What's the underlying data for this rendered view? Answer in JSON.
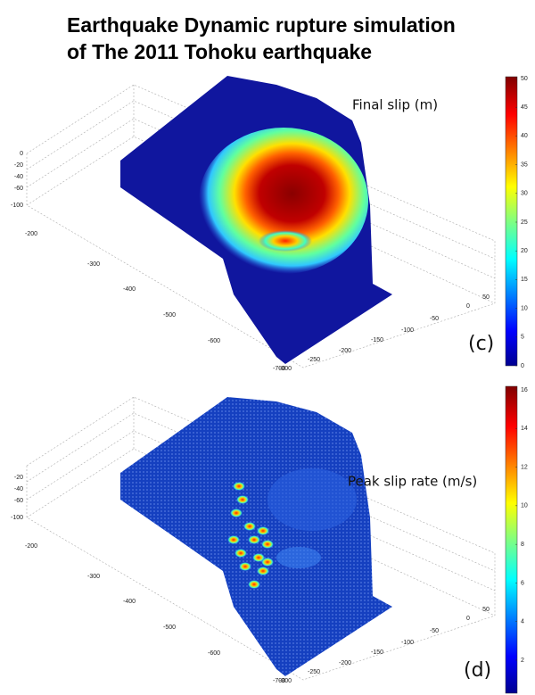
{
  "title": [
    "Earthquake Dynamic rupture simulation",
    "of The 2011 Tohoku earthquake"
  ],
  "panels": [
    {
      "caption": "Final slip (m)",
      "label": "(c)",
      "colorbar_ticks": [
        0,
        5,
        10,
        15,
        20,
        25,
        30,
        35,
        40,
        45,
        50
      ],
      "z_ticks": [
        0,
        -20,
        -40,
        -60,
        -100
      ],
      "left_ticks": [
        -200,
        -300,
        -400,
        -500,
        -600,
        -700
      ],
      "right_ticks": [
        50,
        0,
        -50,
        -100,
        -150,
        -200,
        -250,
        -300
      ]
    },
    {
      "caption": "Peak slip rate (m/s)",
      "label": "(d)",
      "colorbar_ticks": [
        2,
        4,
        6,
        8,
        10,
        12,
        14,
        16
      ],
      "z_ticks": [
        -20,
        -40,
        -60,
        -100
      ],
      "left_ticks": [
        -200,
        -300,
        -400,
        -500,
        -600,
        -700
      ],
      "right_ticks": [
        50,
        0,
        -50,
        -100,
        -150,
        -200,
        -250,
        -300
      ]
    }
  ]
}
